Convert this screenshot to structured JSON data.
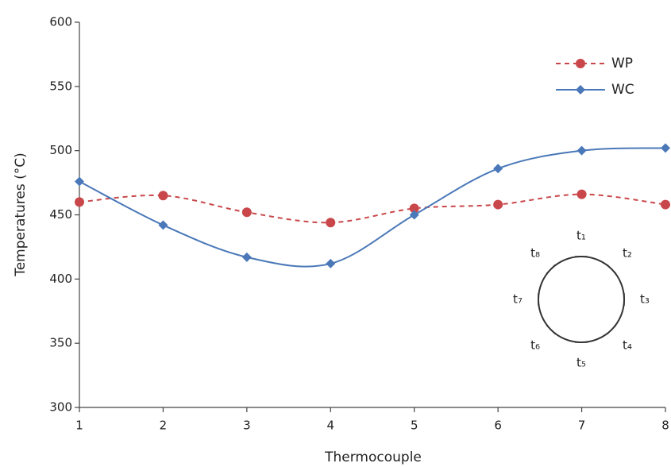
{
  "chart_data": {
    "type": "line",
    "x_label": "Thermocouple",
    "y_label": "Temperatures (°C)",
    "x": [
      1,
      2,
      3,
      4,
      5,
      6,
      7,
      8
    ],
    "xlim": [
      1,
      8
    ],
    "xticks": [
      1,
      2,
      3,
      4,
      5,
      6,
      7,
      8
    ],
    "ylim": [
      300,
      600
    ],
    "yticks": [
      300,
      350,
      400,
      450,
      500,
      550,
      600
    ],
    "legend_position": "upper right",
    "series": [
      {
        "name": "WP",
        "color": "#c9474a",
        "line_style": "dashed",
        "marker": "circle",
        "values": [
          460,
          465,
          452,
          444,
          455,
          458,
          466,
          458
        ]
      },
      {
        "name": "WC",
        "color": "#4a78b8",
        "line_style": "solid",
        "marker": "diamond",
        "values": [
          476,
          442,
          417,
          412,
          450,
          486,
          500,
          502
        ]
      }
    ],
    "inset_labels": [
      "t₁",
      "t₂",
      "t₃",
      "t₄",
      "t₅",
      "t₆",
      "t₇",
      "t₈"
    ]
  }
}
